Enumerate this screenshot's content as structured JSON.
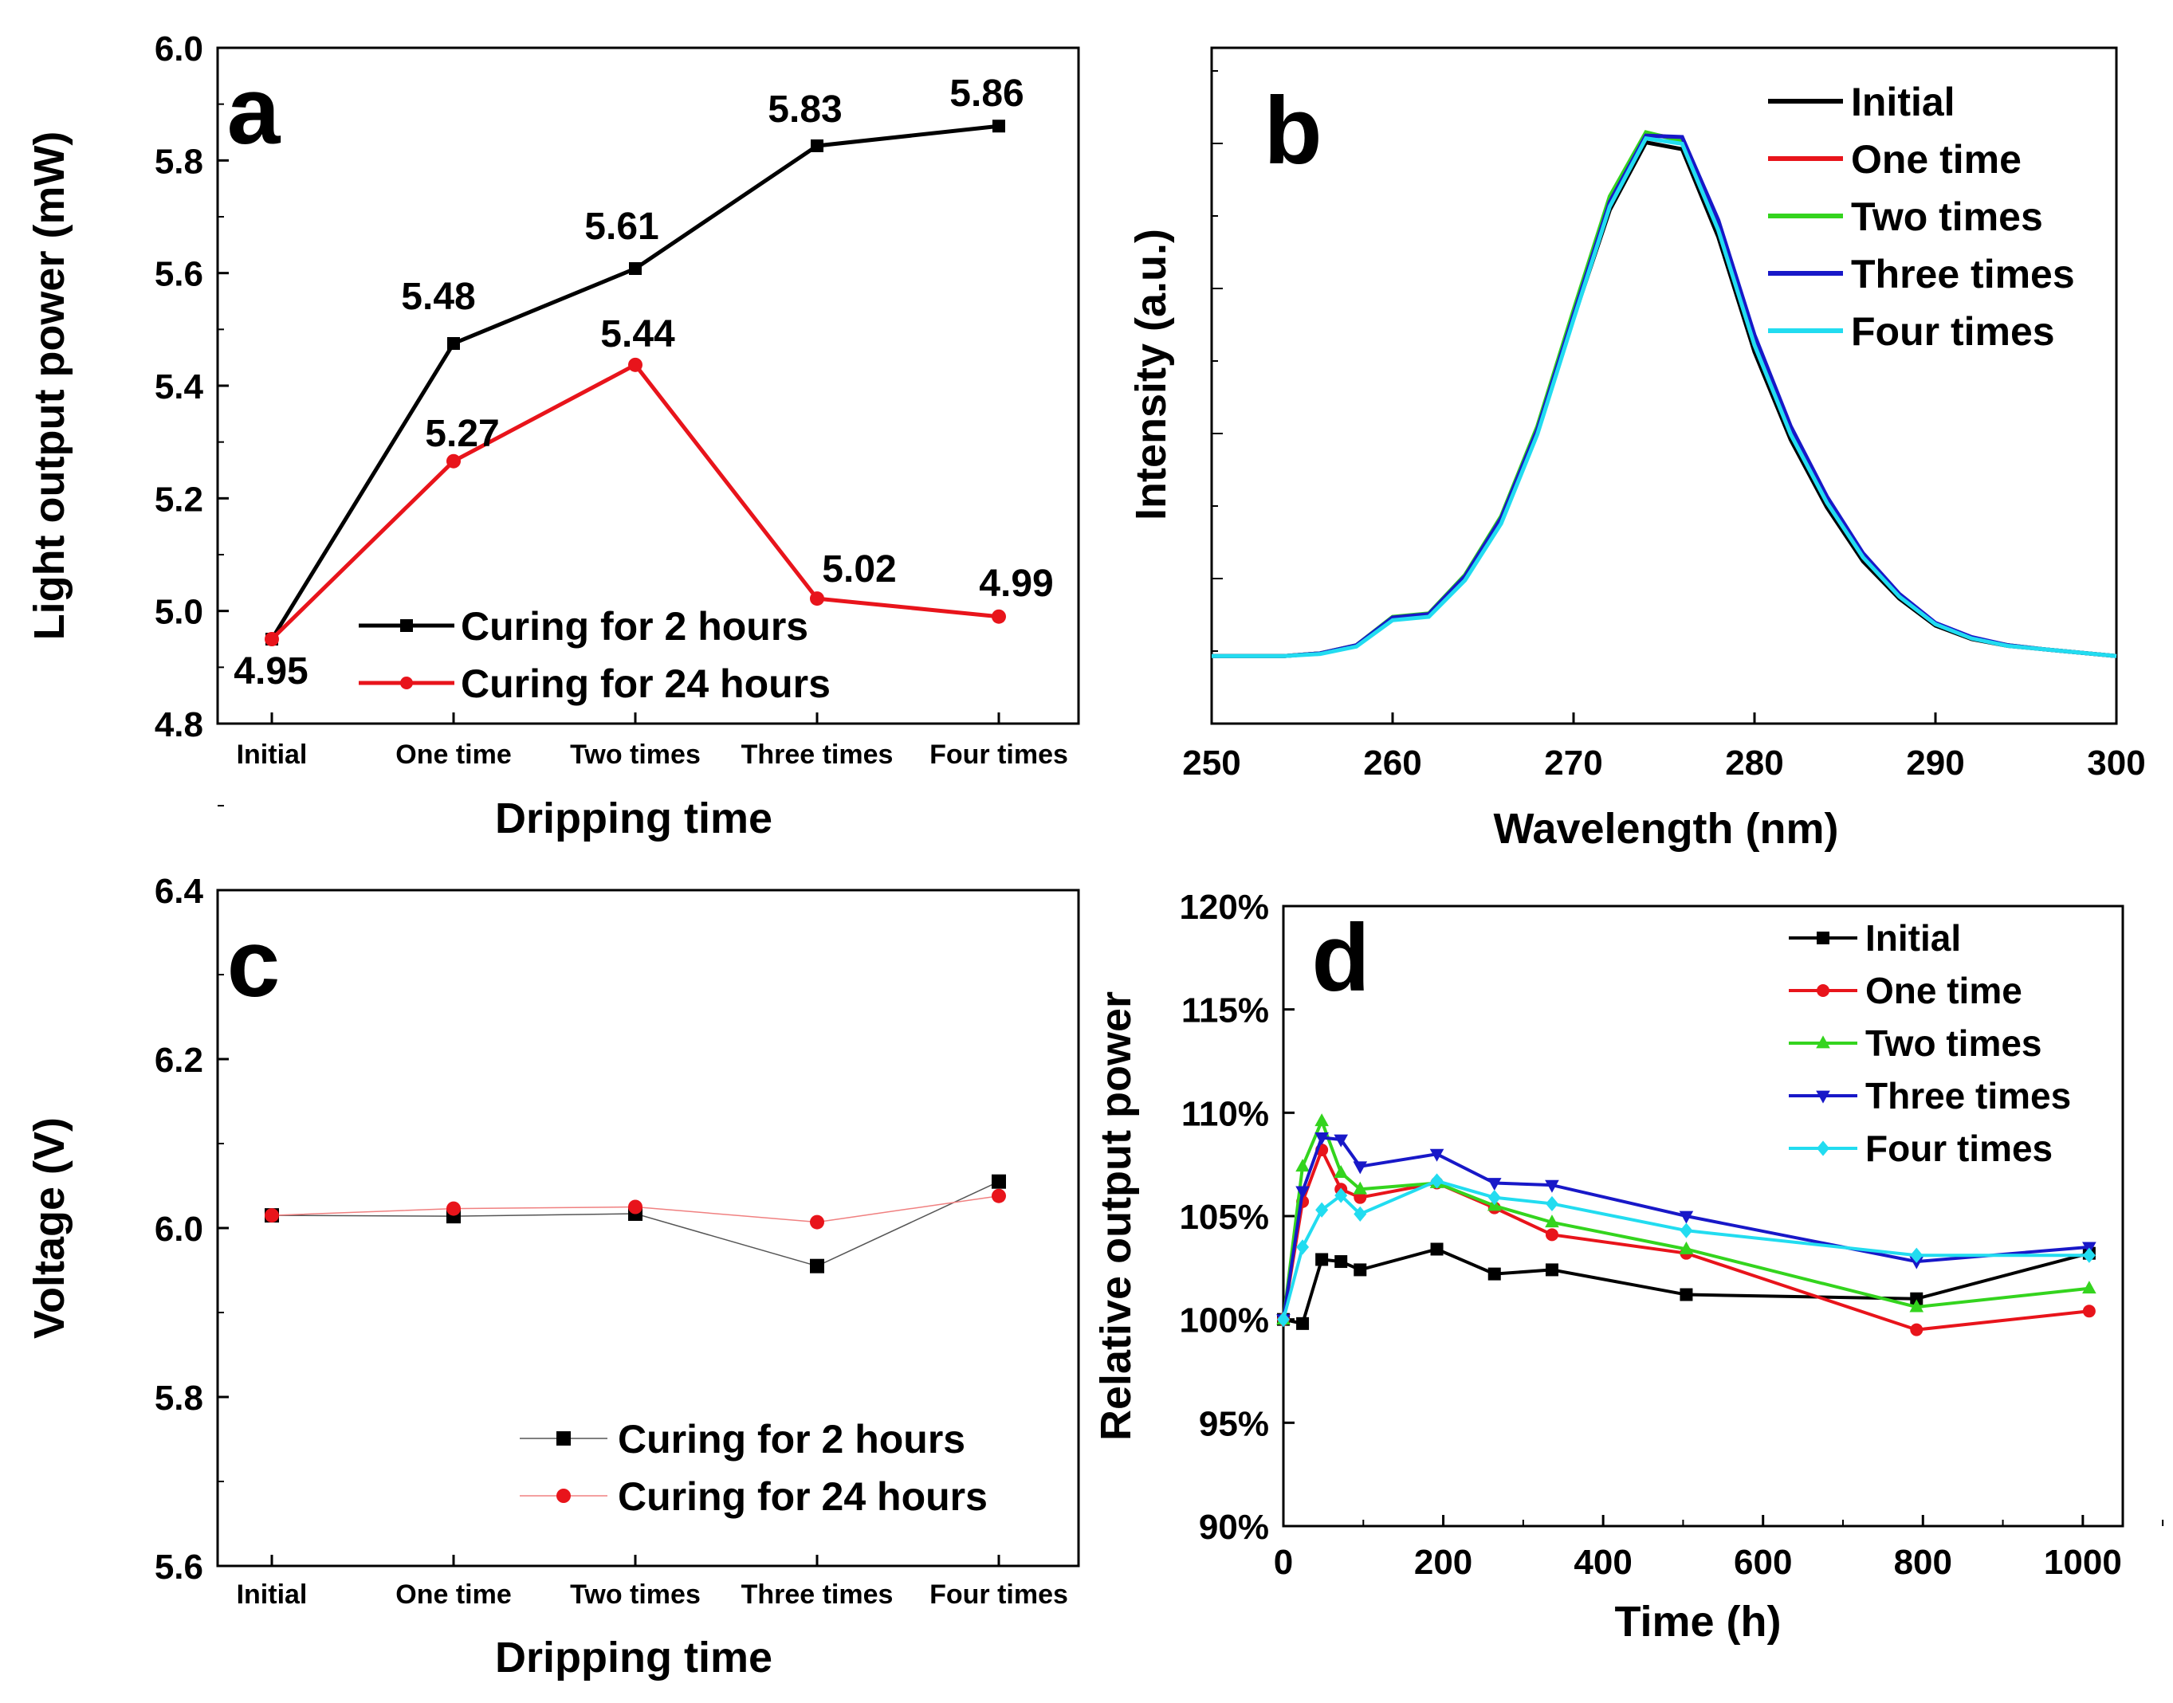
{
  "chart_data": [
    {
      "panel": "a",
      "type": "line",
      "categories": [
        "Initial",
        "One time",
        "Two times",
        "Three times",
        "Four times"
      ],
      "xlabel": "Dripping time",
      "ylabel": "Light output power (mW)",
      "ylim": [
        4.8,
        6.0
      ],
      "yticks": [
        "4.8",
        "5.0",
        "5.2",
        "5.4",
        "5.6",
        "5.8",
        "6.0"
      ],
      "series": [
        {
          "name": "Curing for 2 hours",
          "color": "#000000",
          "marker": "square",
          "values": [
            4.95,
            5.475,
            5.608,
            5.826,
            5.861
          ],
          "labels": [
            "4.95",
            "5.48",
            "5.61",
            "5.83",
            "5.86"
          ]
        },
        {
          "name": "Curing for 24 hours",
          "color": "#e8141b",
          "marker": "circle",
          "values": [
            4.95,
            5.266,
            5.437,
            5.022,
            4.99
          ],
          "labels": [
            "",
            "5.27",
            "5.44",
            "5.02",
            "4.99"
          ]
        }
      ],
      "legend": "bottom-center"
    },
    {
      "panel": "b",
      "type": "line",
      "xlabel": "Wavelength (nm)",
      "ylabel": "Intensity (a.u.)",
      "xlim": [
        250,
        300
      ],
      "ylim": [
        0,
        1
      ],
      "xticks": [
        "250",
        "260",
        "270",
        "280",
        "290",
        "300"
      ],
      "x": [
        250,
        252,
        254,
        256,
        258,
        260,
        262,
        264,
        266,
        268,
        270,
        272,
        274,
        276,
        278,
        280,
        282,
        284,
        286,
        288,
        290,
        292,
        294,
        296,
        298,
        300
      ],
      "series": [
        {
          "name": "Initial",
          "color": "#000000",
          "values": [
            0.1,
            0.1,
            0.1,
            0.104,
            0.115,
            0.155,
            0.16,
            0.215,
            0.3,
            0.43,
            0.6,
            0.76,
            0.86,
            0.85,
            0.72,
            0.55,
            0.42,
            0.32,
            0.24,
            0.185,
            0.145,
            0.125,
            0.115,
            0.11,
            0.105,
            0.1
          ]
        },
        {
          "name": "One time",
          "color": "#e8141b",
          "values": [
            0.1,
            0.1,
            0.1,
            0.104,
            0.116,
            0.157,
            0.162,
            0.218,
            0.305,
            0.436,
            0.608,
            0.774,
            0.873,
            0.865,
            0.74,
            0.57,
            0.435,
            0.333,
            0.25,
            0.19,
            0.148,
            0.127,
            0.116,
            0.11,
            0.105,
            0.1
          ]
        },
        {
          "name": "Two times",
          "color": "#34d41e",
          "values": [
            0.1,
            0.1,
            0.1,
            0.104,
            0.116,
            0.158,
            0.163,
            0.22,
            0.307,
            0.44,
            0.612,
            0.78,
            0.875,
            0.862,
            0.735,
            0.565,
            0.433,
            0.33,
            0.248,
            0.19,
            0.148,
            0.127,
            0.116,
            0.11,
            0.105,
            0.1
          ]
        },
        {
          "name": "Three times",
          "color": "#1818c8",
          "values": [
            0.1,
            0.1,
            0.1,
            0.104,
            0.116,
            0.157,
            0.162,
            0.218,
            0.304,
            0.435,
            0.605,
            0.772,
            0.87,
            0.868,
            0.745,
            0.575,
            0.44,
            0.336,
            0.252,
            0.192,
            0.149,
            0.128,
            0.116,
            0.11,
            0.105,
            0.1
          ]
        },
        {
          "name": "Four times",
          "color": "#22dcf0",
          "values": [
            0.1,
            0.1,
            0.1,
            0.103,
            0.114,
            0.153,
            0.158,
            0.212,
            0.296,
            0.428,
            0.598,
            0.765,
            0.866,
            0.858,
            0.73,
            0.56,
            0.428,
            0.327,
            0.246,
            0.188,
            0.147,
            0.126,
            0.115,
            0.11,
            0.105,
            0.1
          ]
        }
      ],
      "legend": "top-right"
    },
    {
      "panel": "c",
      "type": "line",
      "categories": [
        "Initial",
        "One time",
        "Two times",
        "Three times",
        "Four times"
      ],
      "xlabel": "Dripping time",
      "ylabel": "Voltage (V)",
      "ylim": [
        5.6,
        6.4
      ],
      "yticks": [
        "5.6",
        "5.8",
        "6.0",
        "6.2",
        "6.4"
      ],
      "series": [
        {
          "name": "Curing for 2 hours",
          "color": "#000000",
          "marker": "square",
          "values": [
            6.015,
            6.014,
            6.017,
            5.955,
            6.055
          ]
        },
        {
          "name": "Curing for 24 hours",
          "color": "#e8141b",
          "marker": "circle",
          "values": [
            6.015,
            6.023,
            6.025,
            6.007,
            6.038
          ]
        }
      ],
      "legend": "bottom-right"
    },
    {
      "panel": "d",
      "type": "line",
      "xlabel": "Time (h)",
      "ylabel": "Relative output power",
      "xlim": [
        0,
        1050
      ],
      "ylim": [
        90,
        120
      ],
      "xticks": [
        "0",
        "200",
        "400",
        "600",
        "800",
        "1000"
      ],
      "yticks": [
        "90%",
        "95%",
        "100%",
        "105%",
        "110%",
        "115%",
        "120%"
      ],
      "series": [
        {
          "name": "Initial",
          "color": "#000000",
          "marker": "square",
          "x": [
            0,
            24,
            48,
            72,
            96,
            192,
            264,
            336,
            504,
            792,
            1008
          ],
          "values": [
            100,
            99.8,
            102.9,
            102.8,
            102.4,
            103.4,
            102.2,
            102.4,
            101.2,
            101.0,
            103.2
          ]
        },
        {
          "name": "One time",
          "color": "#e8141b",
          "marker": "circle",
          "x": [
            0,
            24,
            48,
            72,
            96,
            192,
            264,
            336,
            504,
            792,
            1008
          ],
          "values": [
            100,
            105.7,
            108.2,
            106.3,
            105.9,
            106.6,
            105.4,
            104.1,
            103.2,
            99.5,
            100.4
          ]
        },
        {
          "name": "Two times",
          "color": "#34d41e",
          "marker": "triangle-up",
          "x": [
            0,
            24,
            48,
            72,
            96,
            192,
            264,
            336,
            504,
            792,
            1008
          ],
          "values": [
            100,
            107.4,
            109.6,
            107.1,
            106.3,
            106.6,
            105.5,
            104.7,
            103.4,
            100.6,
            101.5
          ]
        },
        {
          "name": "Three times",
          "color": "#1818c8",
          "marker": "triangle-down",
          "x": [
            0,
            24,
            48,
            72,
            96,
            192,
            264,
            336,
            504,
            792,
            1008
          ],
          "values": [
            100,
            106.2,
            108.8,
            108.7,
            107.4,
            108.0,
            106.6,
            106.5,
            105.0,
            102.8,
            103.5
          ]
        },
        {
          "name": "Four times",
          "color": "#22dcf0",
          "marker": "diamond",
          "x": [
            0,
            24,
            48,
            72,
            96,
            192,
            264,
            336,
            504,
            792,
            1008
          ],
          "values": [
            100,
            103.5,
            105.3,
            106.0,
            105.1,
            106.7,
            105.9,
            105.6,
            104.3,
            103.1,
            103.1
          ]
        }
      ],
      "legend": "top-right"
    }
  ]
}
